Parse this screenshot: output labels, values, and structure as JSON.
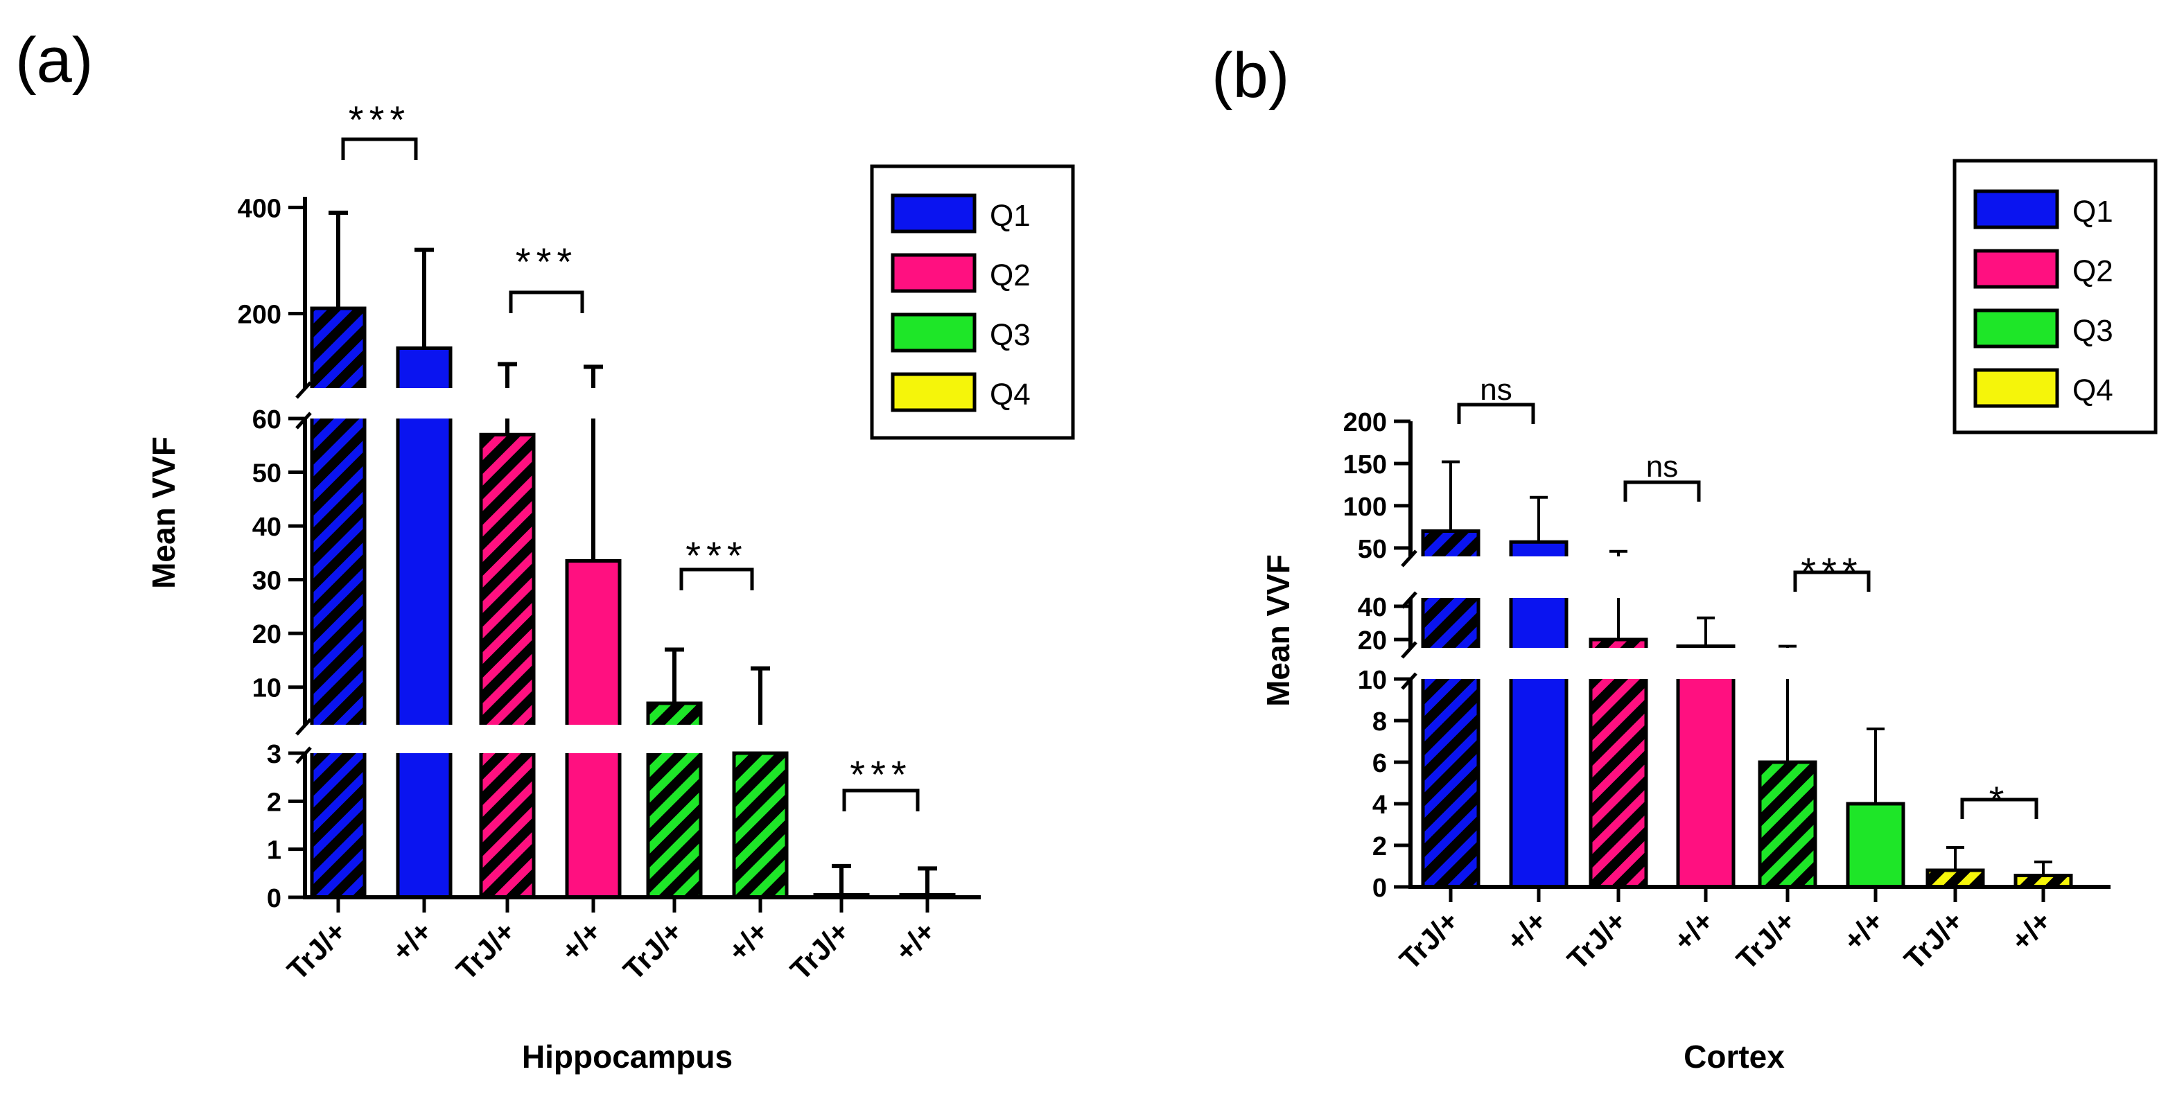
{
  "panels": [
    {
      "label": "(a)",
      "xlabel": "Hippocampus",
      "ylabel": "Mean VVF"
    },
    {
      "label": "(b)",
      "xlabel": "Cortex",
      "ylabel": "Mean VVF"
    }
  ],
  "legend": [
    {
      "label": "Q1",
      "color": "#0a14f0"
    },
    {
      "label": "Q2",
      "color": "#ff1080"
    },
    {
      "label": "Q3",
      "color": "#1ee628"
    },
    {
      "label": "Q4",
      "color": "#f5f50a"
    }
  ],
  "chart_data": [
    {
      "type": "bar",
      "panel": "(a)",
      "xlabel": "Hippocampus",
      "ylabel": "Mean VVF",
      "categories": [
        "TrJ/+",
        "+/+",
        "TrJ/+",
        "+/+",
        "TrJ/+",
        "+/+",
        "TrJ/+",
        "+/+"
      ],
      "groups": [
        "Q1",
        "Q1",
        "Q2",
        "Q2",
        "Q3",
        "Q3",
        "Q4",
        "Q4"
      ],
      "hatched": [
        true,
        false,
        true,
        false,
        true,
        true,
        true,
        false
      ],
      "values": [
        210,
        135,
        57,
        33.5,
        7,
        3,
        0.05,
        0.05
      ],
      "error_upper": [
        390,
        320,
        105,
        100,
        17,
        13.5,
        0.65,
        0.6
      ],
      "axis_breaks": [
        {
          "range": [
            0,
            3
          ],
          "ticks": [
            0,
            1,
            2,
            3
          ]
        },
        {
          "range": [
            3,
            60
          ],
          "ticks": [
            10,
            20,
            30,
            40,
            50,
            60
          ]
        },
        {
          "range": [
            60,
            420
          ],
          "ticks": [
            200,
            400
          ]
        }
      ],
      "significance": [
        {
          "between": [
            0,
            1
          ],
          "label": "***"
        },
        {
          "between": [
            2,
            3
          ],
          "label": "***"
        },
        {
          "between": [
            4,
            5
          ],
          "label": "***"
        },
        {
          "between": [
            6,
            7
          ],
          "label": "***"
        }
      ]
    },
    {
      "type": "bar",
      "panel": "(b)",
      "xlabel": "Cortex",
      "ylabel": "Mean VVF",
      "categories": [
        "TrJ/+",
        "+/+",
        "TrJ/+",
        "+/+",
        "TrJ/+",
        "+/+",
        "TrJ/+",
        "+/+"
      ],
      "groups": [
        "Q1",
        "Q1",
        "Q2",
        "Q2",
        "Q3",
        "Q3",
        "Q4",
        "Q4"
      ],
      "hatched": [
        true,
        false,
        true,
        false,
        true,
        false,
        true,
        true
      ],
      "values": [
        70,
        57,
        20,
        16,
        6,
        4,
        0.8,
        0.55
      ],
      "error_upper": [
        152,
        110,
        46,
        33,
        16,
        7.6,
        1.9,
        1.2
      ],
      "axis_breaks": [
        {
          "range": [
            0,
            10
          ],
          "ticks": [
            0,
            2,
            4,
            6,
            8,
            10
          ]
        },
        {
          "range": [
            15,
            45
          ],
          "ticks": [
            20,
            40
          ]
        },
        {
          "range": [
            40,
            200
          ],
          "ticks": [
            50,
            100,
            150,
            200
          ]
        }
      ],
      "significance": [
        {
          "between": [
            0,
            1
          ],
          "label": "ns"
        },
        {
          "between": [
            2,
            3
          ],
          "label": "ns"
        },
        {
          "between": [
            4,
            5
          ],
          "label": "***"
        },
        {
          "between": [
            6,
            7
          ],
          "label": "*"
        }
      ]
    }
  ]
}
